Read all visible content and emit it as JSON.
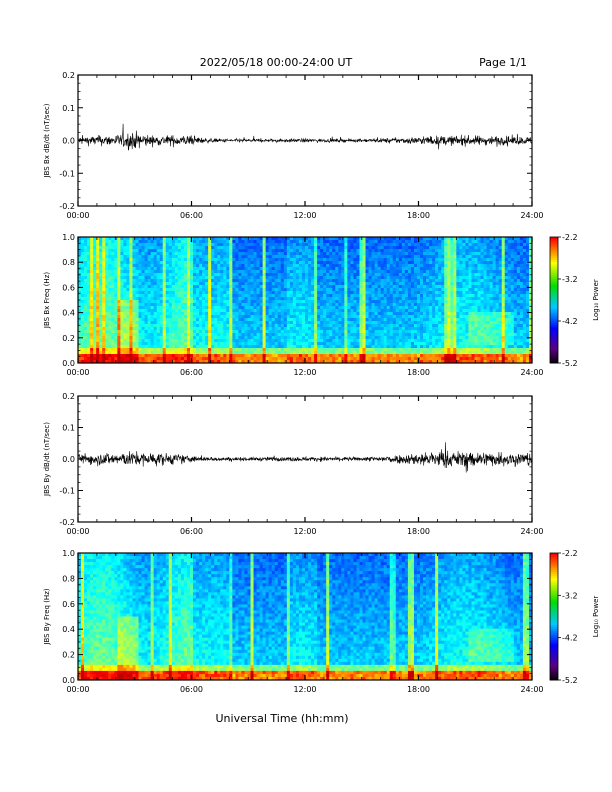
{
  "header": {
    "title": "2022/05/18  00:00-24:00 UT",
    "page": "Page 1/1"
  },
  "xlabel": "Universal Time (hh:mm)",
  "colors": {
    "trace": "#000000",
    "spec_dark": "#0000b0",
    "spec_low": "#ffff00"
  },
  "chart_data": [
    {
      "type": "line",
      "ylabel": "JBS Bx dB/dt (nT/sec)",
      "xlim": [
        0,
        24
      ],
      "xticks": [
        "00:00",
        "06:00",
        "12:00",
        "18:00",
        "24:00"
      ],
      "ylim": [
        -0.2,
        0.2
      ],
      "yticks": [
        "0.2",
        "0.1",
        "0.0",
        "-0.1",
        "-0.2"
      ],
      "envelope": [
        {
          "t": 0,
          "amp": 0.022
        },
        {
          "t": 2,
          "amp": 0.03
        },
        {
          "t": 2.8,
          "amp": 0.05
        },
        {
          "t": 4,
          "amp": 0.025
        },
        {
          "t": 5.5,
          "amp": 0.03
        },
        {
          "t": 7,
          "amp": 0.01
        },
        {
          "t": 10,
          "amp": 0.008
        },
        {
          "t": 12,
          "amp": 0.01
        },
        {
          "t": 15,
          "amp": 0.008
        },
        {
          "t": 17,
          "amp": 0.015
        },
        {
          "t": 19,
          "amp": 0.025
        },
        {
          "t": 22,
          "amp": 0.025
        },
        {
          "t": 24,
          "amp": 0.02
        }
      ]
    },
    {
      "type": "heatmap",
      "ylabel": "JBS Bx Freq (Hz)",
      "xlim": [
        0,
        24
      ],
      "xticks": [
        "00:00",
        "06:00",
        "12:00",
        "18:00",
        "24:00"
      ],
      "ylim": [
        0,
        1.0
      ],
      "yticks": [
        "1.0",
        "0.8",
        "0.6",
        "0.4",
        "0.2",
        "0.0"
      ],
      "colorbar": {
        "label": "Log₁₀ Power",
        "ticks": [
          "-2.2",
          "-3.2",
          "-4.2",
          "-5.2"
        ],
        "range": [
          -5.2,
          -2.2
        ]
      }
    },
    {
      "type": "line",
      "ylabel": "JBS By dB/dt (nT/sec)",
      "xlim": [
        0,
        24
      ],
      "xticks": [
        "00:00",
        "06:00",
        "12:00",
        "18:00",
        "24:00"
      ],
      "ylim": [
        -0.2,
        0.2
      ],
      "yticks": [
        "0.2",
        "0.1",
        "0.0",
        "-0.1",
        "-0.2"
      ],
      "envelope": [
        {
          "t": 0,
          "amp": 0.03
        },
        {
          "t": 2,
          "amp": 0.035
        },
        {
          "t": 3,
          "amp": 0.04
        },
        {
          "t": 5,
          "amp": 0.03
        },
        {
          "t": 6.5,
          "amp": 0.012
        },
        {
          "t": 9,
          "amp": 0.01
        },
        {
          "t": 12,
          "amp": 0.012
        },
        {
          "t": 15,
          "amp": 0.01
        },
        {
          "t": 17,
          "amp": 0.025
        },
        {
          "t": 19,
          "amp": 0.045
        },
        {
          "t": 22,
          "amp": 0.04
        },
        {
          "t": 24,
          "amp": 0.035
        }
      ]
    },
    {
      "type": "heatmap",
      "ylabel": "JBS By Freq (Hz)",
      "xlim": [
        0,
        24
      ],
      "xticks": [
        "00:00",
        "06:00",
        "12:00",
        "18:00",
        "24:00"
      ],
      "ylim": [
        0,
        1.0
      ],
      "yticks": [
        "1.0",
        "0.8",
        "0.6",
        "0.4",
        "0.2",
        "0.0"
      ],
      "colorbar": {
        "label": "Log₁₀ Power",
        "ticks": [
          "-2.2",
          "-3.2",
          "-4.2",
          "-5.2"
        ],
        "range": [
          -5.2,
          -2.2
        ]
      }
    }
  ]
}
